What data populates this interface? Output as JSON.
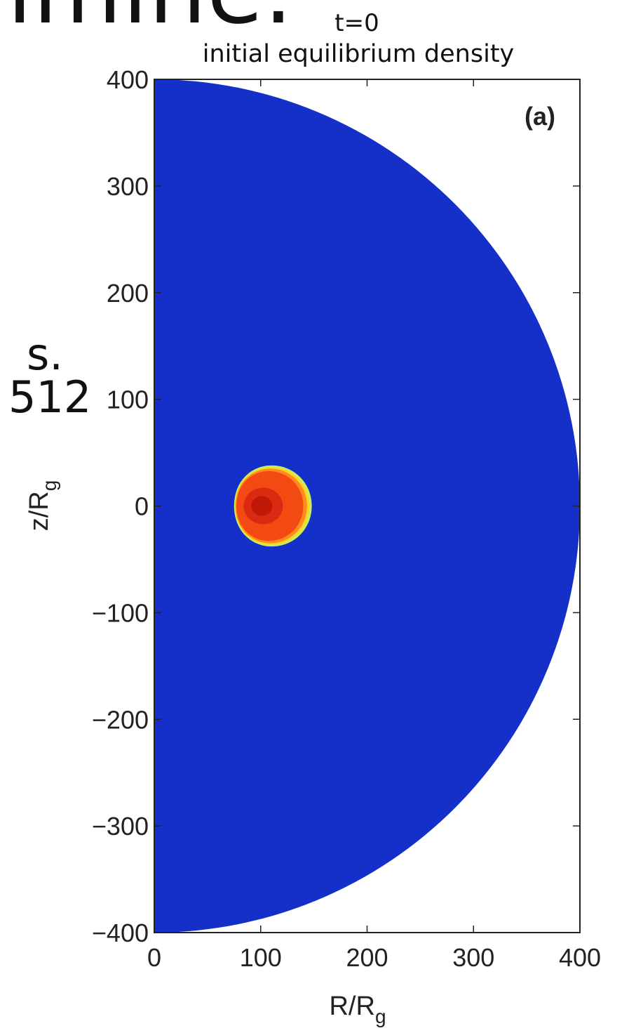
{
  "slide_fragments": {
    "top": "imine.",
    "mid1": "s.",
    "mid2": "512"
  },
  "chart_data": {
    "type": "heatmap",
    "title": "t=0",
    "subtitle": "initial equilibrium density",
    "panel_label": "(a)",
    "xlabel_main": "R/R",
    "xlabel_sub": "g",
    "ylabel_main": "z/R",
    "ylabel_sub": "g",
    "xlim": [
      0,
      400
    ],
    "ylim": [
      -400,
      400
    ],
    "x_ticks": [
      0,
      100,
      200,
      300,
      400
    ],
    "y_ticks": [
      400,
      300,
      200,
      100,
      0,
      -100,
      -200,
      -300,
      -400
    ],
    "x_tick_labels": [
      "0",
      "100",
      "200",
      "300",
      "400"
    ],
    "y_tick_labels": [
      "400",
      "300",
      "200",
      "100",
      "0",
      "−100",
      "−200",
      "−300",
      "−400"
    ],
    "domain": {
      "shape": "half-disk",
      "radius": 400,
      "color": "#1430c8"
    },
    "torus": {
      "center": [
        105,
        0
      ],
      "r_inner_extent": 75,
      "r_outer_extent": 148,
      "z_half_height": 38,
      "colors": {
        "edge": "#c8ef5a",
        "rim": "#f8d628",
        "outer": "#ff8c1c",
        "body": "#f34a14",
        "core": "#d62410",
        "peak": "#b81408"
      }
    }
  }
}
